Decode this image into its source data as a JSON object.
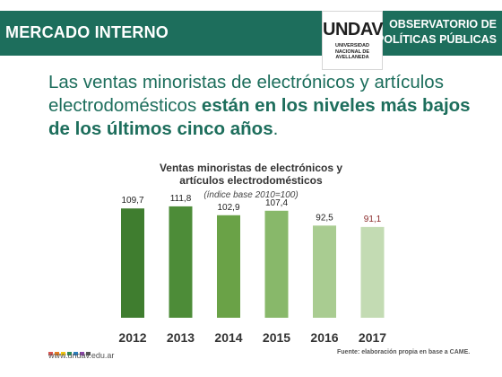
{
  "header": {
    "section_label": "MERCADO INTERNO",
    "logo_word": "UNDAV",
    "logo_sub": [
      "UNIVERSIDAD",
      "NACIONAL DE",
      "AVELLANEDA"
    ],
    "observatorio_line1": "OBSERVATORIO DE",
    "observatorio_line2": "POLÍTICAS PÚBLICAS"
  },
  "headline": {
    "regular": "Las ventas minoristas de electrónicos y artículos electrodomésticos ",
    "bold": "están en los niveles más bajos de los últimos cinco años",
    "end": "."
  },
  "colors": {
    "brand_green": "#1d6e5c",
    "bar_colors": [
      "#3f7d2f",
      "#4d8c38",
      "#6aa247",
      "#88b86a",
      "#a9cc91",
      "#c3dbb3"
    ],
    "highlight_label": "#8a2a2a",
    "footer_dots": [
      "#d9534f",
      "#e67e22",
      "#f1c40f",
      "#2e8b57",
      "#2a7fbf",
      "#8e44ad",
      "#555555"
    ]
  },
  "chart_data": {
    "type": "bar",
    "title": "Ventas minoristas de electrónicos y artículos electrodomésticos",
    "title_line1": "Ventas minoristas de electrónicos y",
    "title_line2": "artículos electrodomésticos",
    "subtitle": "(índice base 2010=100)",
    "categories": [
      "2012",
      "2013",
      "2014",
      "2015",
      "2016",
      "2017"
    ],
    "values": [
      109.7,
      111.8,
      102.9,
      107.4,
      92.5,
      91.1
    ],
    "value_labels": [
      "109,7",
      "111,8",
      "102,9",
      "107,4",
      "92,5",
      "91,1"
    ],
    "highlighted_category": "2017",
    "xlabel": "",
    "ylabel": "",
    "ylim": [
      0,
      120
    ],
    "grid": false,
    "legend": "none"
  },
  "footer": {
    "url": "www.undav.edu.ar",
    "source": "Fuente: elaboración propia en base a CAME."
  }
}
